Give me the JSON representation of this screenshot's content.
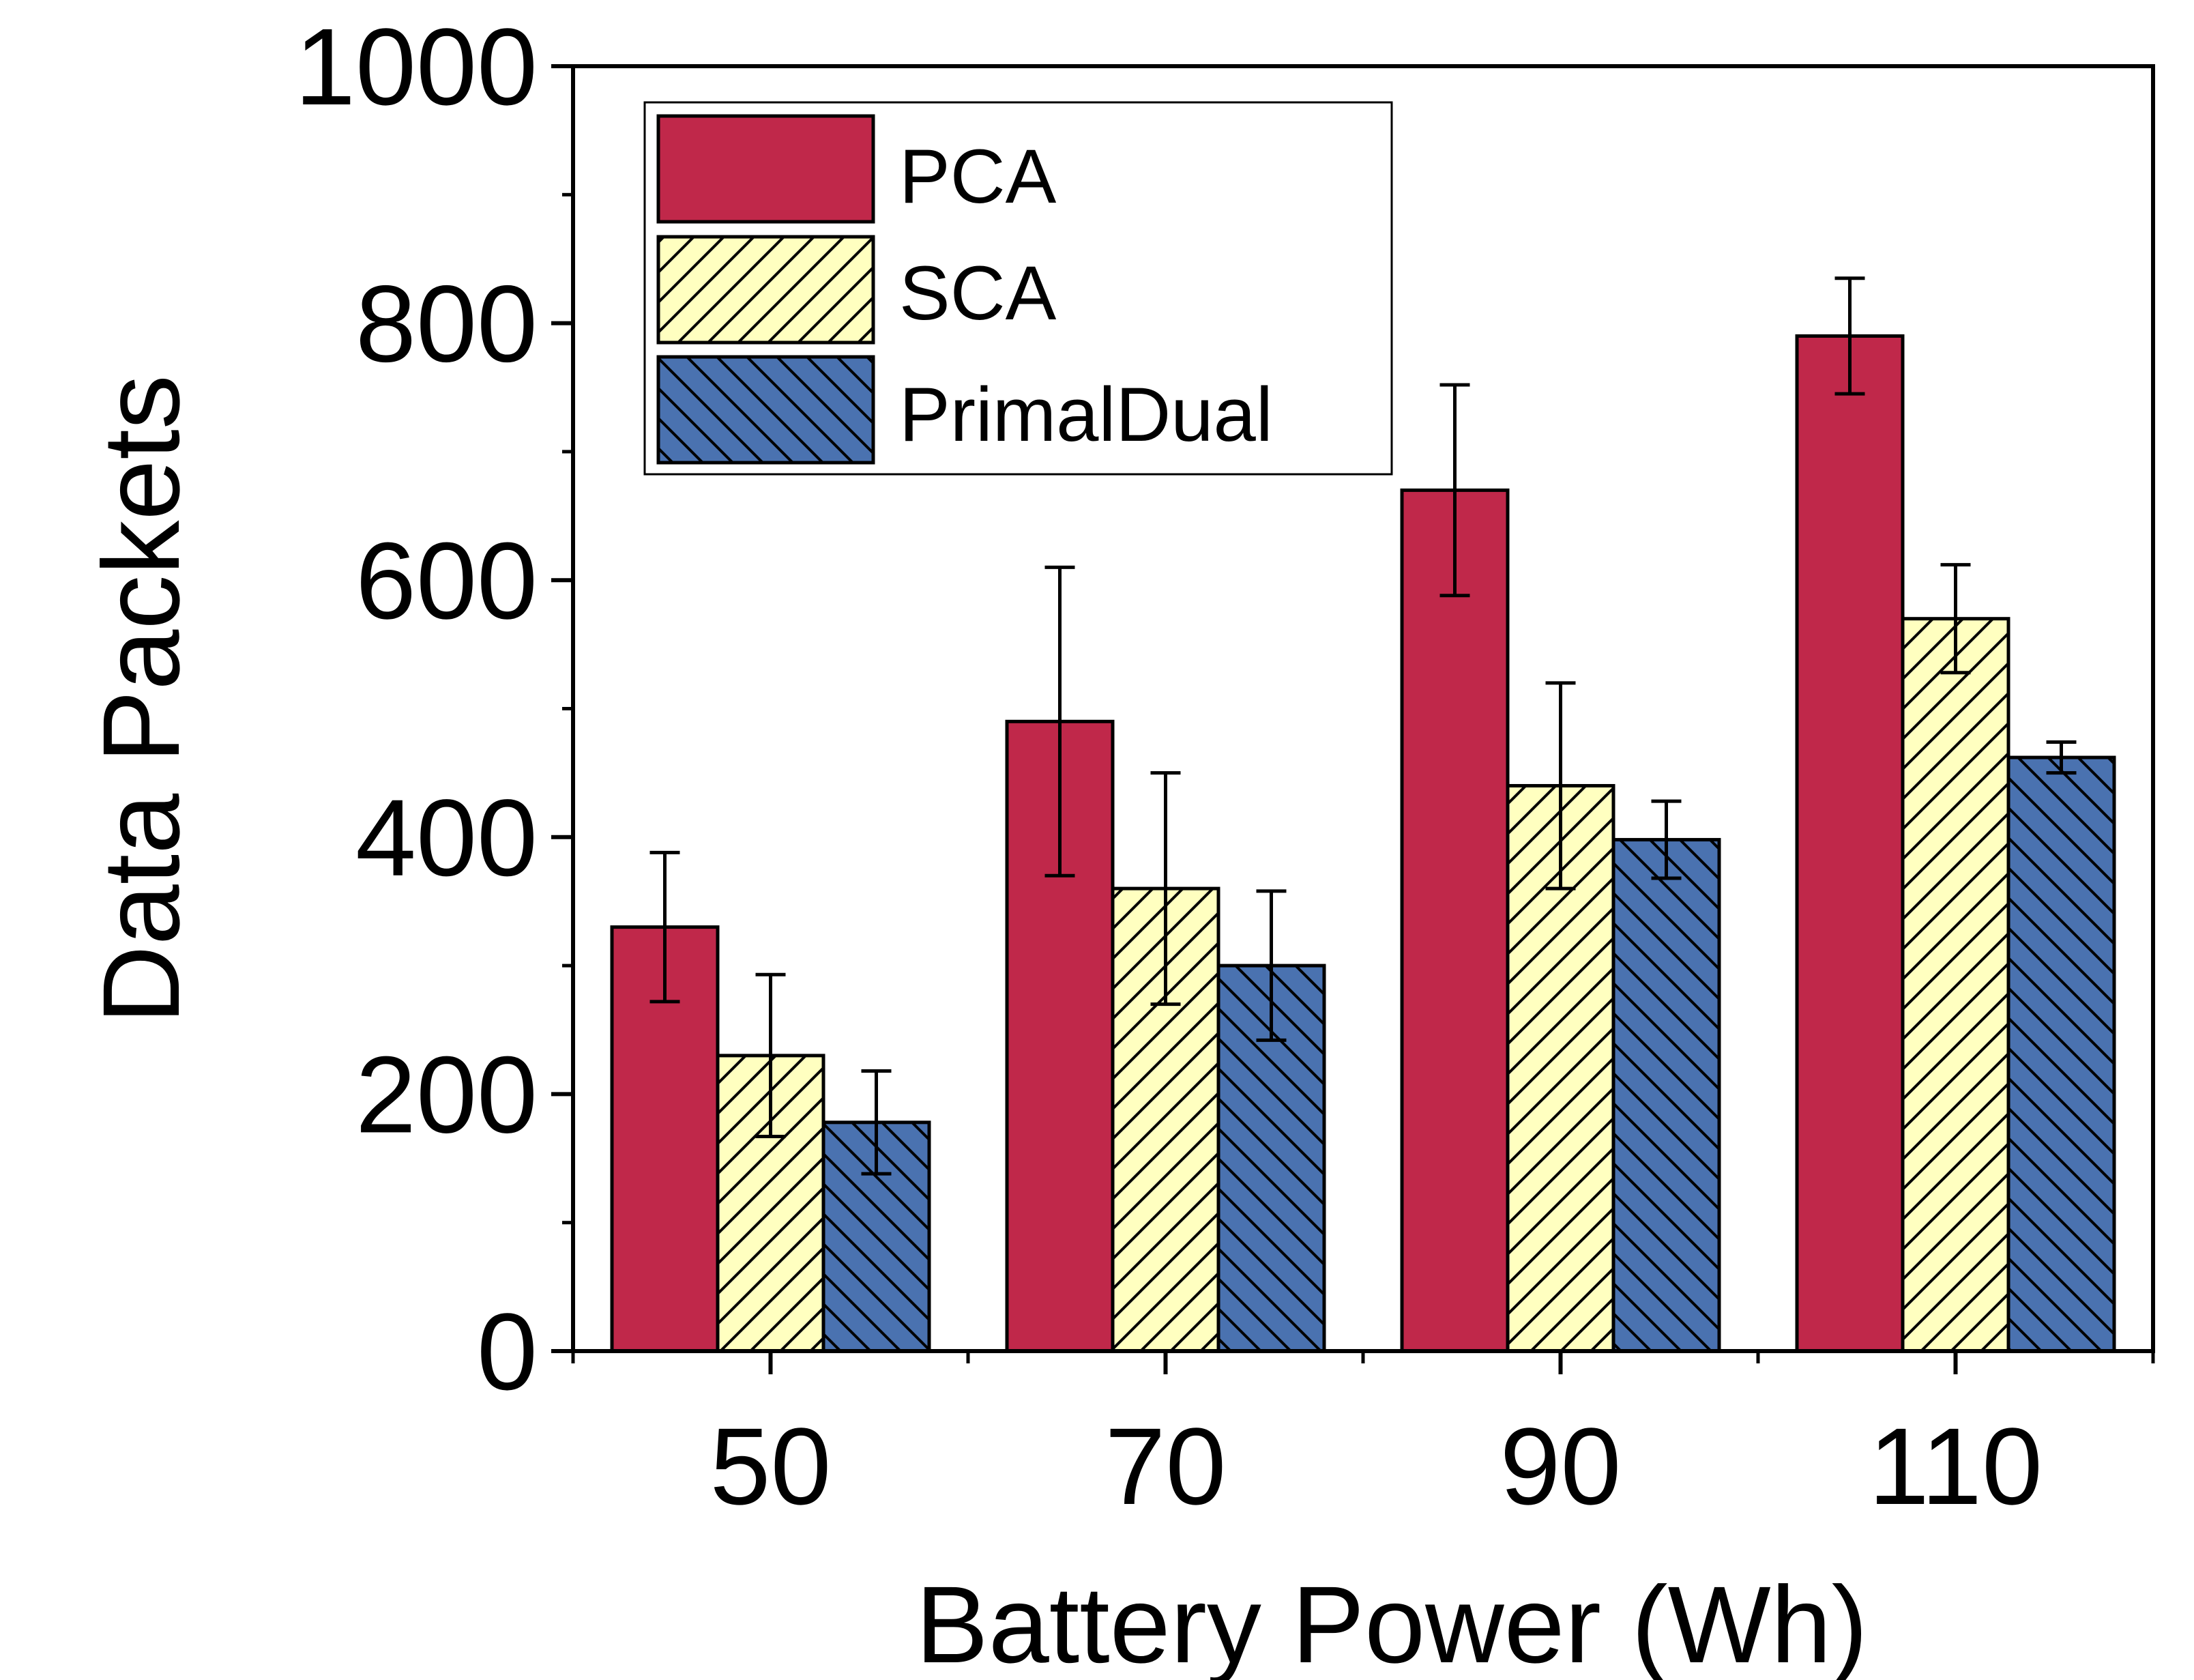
{
  "chart_data": {
    "type": "bar",
    "xlabel": "Battery Power (Wh)",
    "ylabel": "Data Packets",
    "categories": [
      "50",
      "70",
      "90",
      "110"
    ],
    "ylim": [
      0,
      1000
    ],
    "yticks": [
      "0",
      "200",
      "400",
      "600",
      "800",
      "1000"
    ],
    "series": [
      {
        "name": "PCA",
        "values": [
          330,
          490,
          670,
          790
        ],
        "errors": [
          58,
          120,
          82,
          45
        ],
        "color": "#C0284A",
        "pattern": "solid"
      },
      {
        "name": "SCA",
        "values": [
          230,
          360,
          440,
          570
        ],
        "errors": [
          63,
          90,
          80,
          42
        ],
        "color": "#FFFFC0",
        "pattern": "forward-hatch"
      },
      {
        "name": "PrimalDual",
        "values": [
          178,
          300,
          398,
          462
        ],
        "errors": [
          40,
          58,
          30,
          12
        ],
        "color": "#4A72B0",
        "pattern": "back-hatch"
      }
    ],
    "legend_position": "top-left",
    "grid": false
  }
}
